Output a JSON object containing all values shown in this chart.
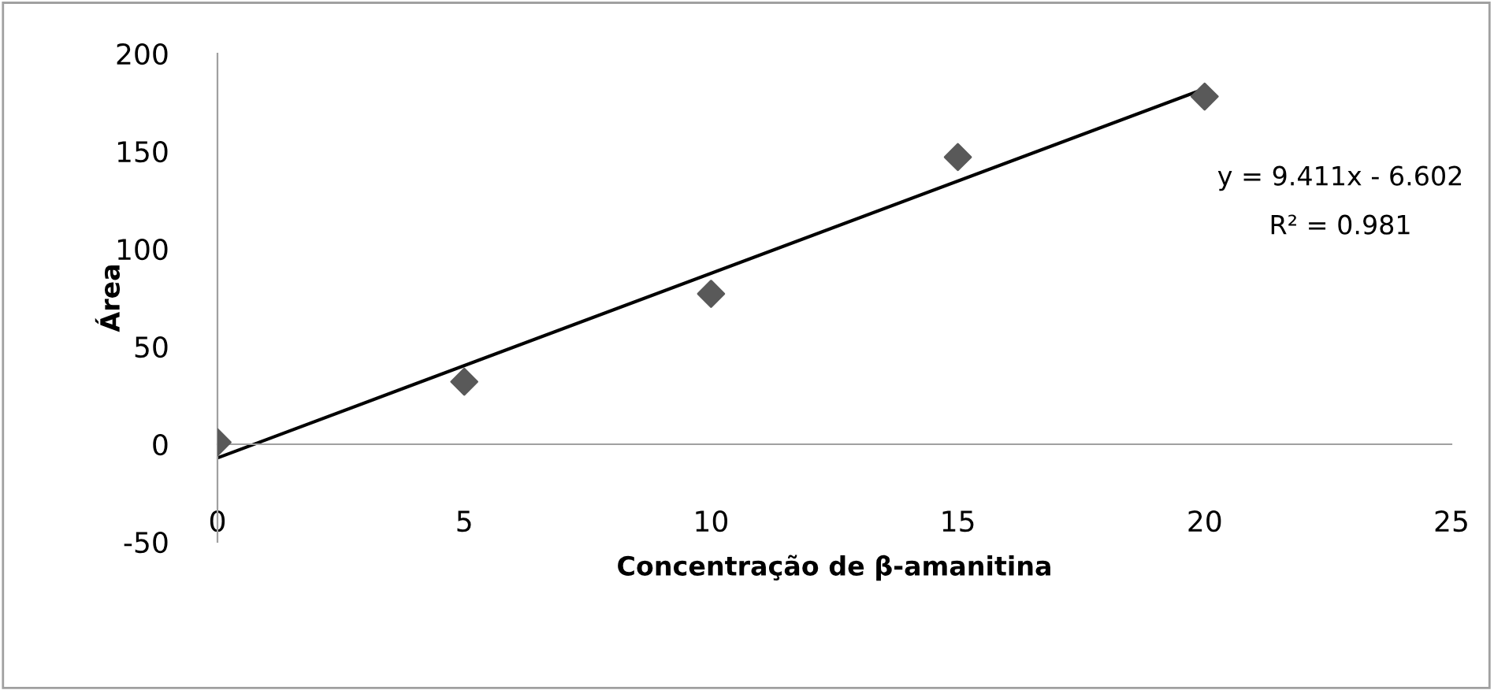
{
  "chart_data": {
    "type": "scatter",
    "xlabel": "Concentração de β-amanitina",
    "ylabel": "Área",
    "xlim": [
      0,
      25
    ],
    "xticks": [
      0,
      5,
      10,
      15,
      20,
      25
    ],
    "ylim": [
      -50,
      200
    ],
    "yticks": [
      -50,
      0,
      50,
      100,
      150,
      200
    ],
    "grid": false,
    "legend": false,
    "series": [
      {
        "color": "#595959",
        "x": [
          0,
          5,
          10,
          15,
          20
        ],
        "values": [
          1,
          32,
          77,
          147,
          178
        ],
        "marker": "diamond"
      },
      {
        "type": "line",
        "color": "#000000",
        "x": [
          0,
          20
        ],
        "values": [
          -7,
          182
        ],
        "line_style": "solid",
        "marker": "none"
      }
    ],
    "annotations": [
      "y = 9.411x - 6.602",
      "R² = 0.981"
    ]
  }
}
